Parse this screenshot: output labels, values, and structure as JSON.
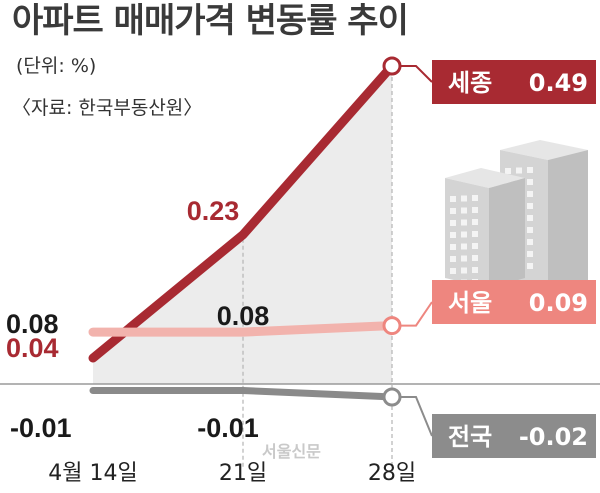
{
  "chart_data": {
    "type": "line",
    "title": "아파트 매매가격 변동률 추이",
    "unit_note": "(단위: %)",
    "source_note": "〈자료: 한국부동산원〉",
    "categories": [
      "4월 14일",
      "21일",
      "28일"
    ],
    "ylim": [
      -0.05,
      0.5
    ],
    "grid": false,
    "legend": "inline-right",
    "series": [
      {
        "name": "세종",
        "tag_label": "세종",
        "values": [
          0.04,
          0.23,
          0.49
        ],
        "value_labels": [
          "0.04",
          "0.23",
          "0.49"
        ],
        "color": "#a82a32",
        "tag_color": "#a82a32"
      },
      {
        "name": "서울",
        "tag_label": "서울",
        "values": [
          0.08,
          0.08,
          0.09
        ],
        "value_labels": [
          "0.08",
          "0.08",
          "0.09"
        ],
        "color": "#f2b3ad",
        "tag_color": "#ee867f"
      },
      {
        "name": "전국",
        "tag_label": "전국",
        "values": [
          -0.01,
          -0.01,
          -0.02
        ],
        "value_labels": [
          "-0.01",
          "-0.01",
          "-0.02"
        ],
        "color": "#8a8a8a",
        "tag_color": "#8c8c8c"
      }
    ]
  },
  "watermark": "서울신문",
  "colors": {
    "area_fill": "#ececec",
    "axis_line": "#9a9a9a",
    "dashed_guides": "#b5b5b5",
    "building": "#d4d4d4"
  }
}
